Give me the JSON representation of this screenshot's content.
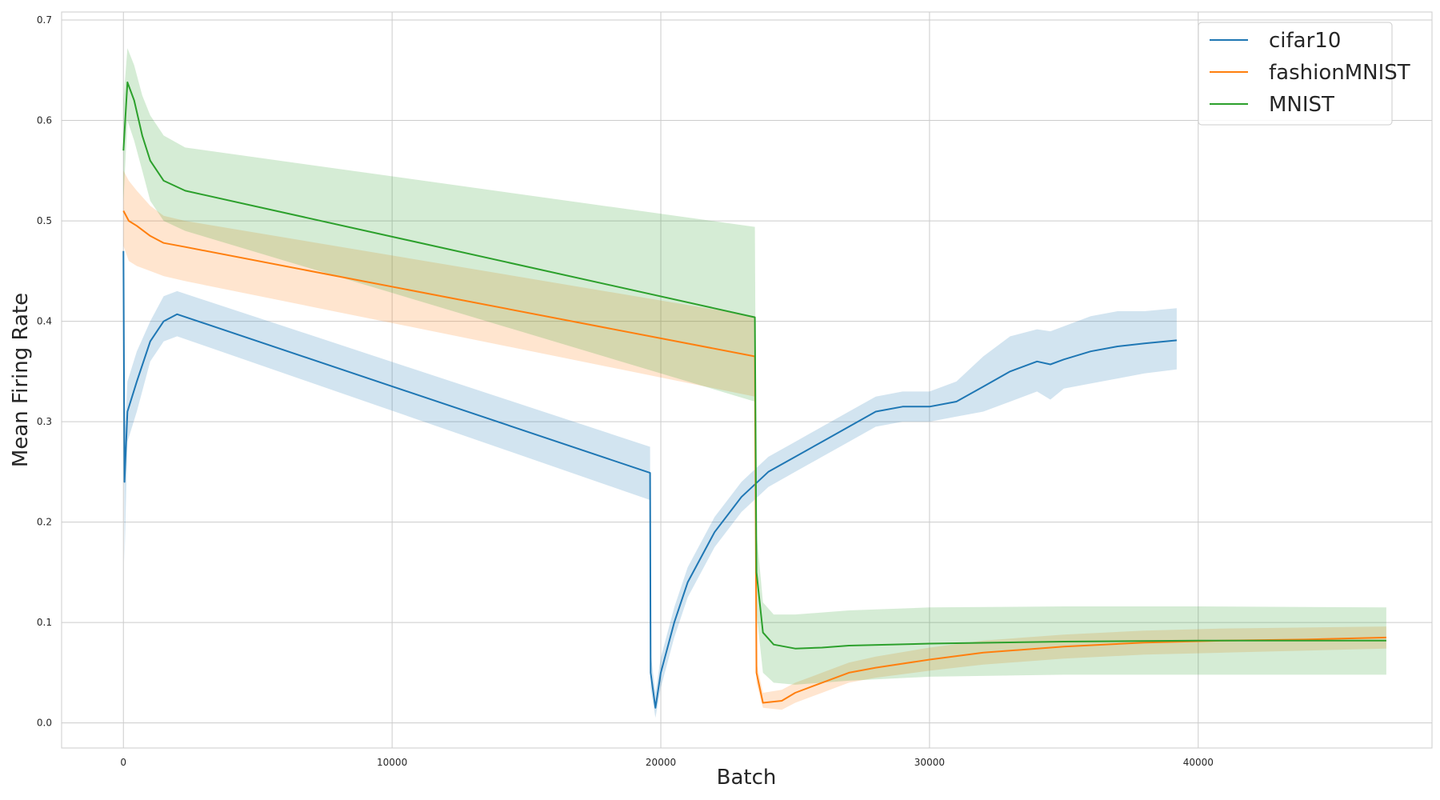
{
  "chart_data": {
    "type": "line",
    "title": "",
    "xlabel": "Batch",
    "ylabel": "Mean Firing Rate",
    "xlim": [
      -2300,
      48700
    ],
    "ylim": [
      -0.025,
      0.708
    ],
    "x_ticks": [
      0,
      10000,
      20000,
      30000,
      40000
    ],
    "y_ticks": [
      0.0,
      0.1,
      0.2,
      0.3,
      0.4,
      0.5,
      0.6,
      0.7
    ],
    "y_tick_labels": [
      "0.0",
      "0.1",
      "0.2",
      "0.3",
      "0.4",
      "0.5",
      "0.6",
      "0.7"
    ],
    "grid": true,
    "legend_position": "top-right",
    "series": [
      {
        "name": "cifar10",
        "color": "#1f77b4",
        "points": [
          [
            0,
            0.47
          ],
          [
            40,
            0.24
          ],
          [
            150,
            0.31
          ],
          [
            500,
            0.34
          ],
          [
            1000,
            0.38
          ],
          [
            1500,
            0.4
          ],
          [
            2000,
            0.407
          ],
          [
            19600,
            0.249
          ],
          [
            19620,
            0.05
          ],
          [
            19800,
            0.015
          ],
          [
            20000,
            0.05
          ],
          [
            20500,
            0.1
          ],
          [
            21000,
            0.14
          ],
          [
            22000,
            0.19
          ],
          [
            23000,
            0.225
          ],
          [
            24000,
            0.25
          ],
          [
            25000,
            0.265
          ],
          [
            26000,
            0.28
          ],
          [
            27000,
            0.295
          ],
          [
            28000,
            0.31
          ],
          [
            29000,
            0.315
          ],
          [
            30000,
            0.315
          ],
          [
            31000,
            0.32
          ],
          [
            32000,
            0.335
          ],
          [
            33000,
            0.35
          ],
          [
            34000,
            0.36
          ],
          [
            34500,
            0.357
          ],
          [
            35000,
            0.362
          ],
          [
            36000,
            0.37
          ],
          [
            37000,
            0.375
          ],
          [
            38000,
            0.378
          ],
          [
            39200,
            0.381
          ]
        ],
        "upper": [
          [
            0,
            0.47
          ],
          [
            40,
            0.28
          ],
          [
            150,
            0.34
          ],
          [
            500,
            0.37
          ],
          [
            1000,
            0.4
          ],
          [
            1500,
            0.425
          ],
          [
            2000,
            0.43
          ],
          [
            19600,
            0.275
          ],
          [
            19620,
            0.07
          ],
          [
            19800,
            0.03
          ],
          [
            20000,
            0.065
          ],
          [
            20500,
            0.115
          ],
          [
            21000,
            0.155
          ],
          [
            22000,
            0.205
          ],
          [
            23000,
            0.24
          ],
          [
            24000,
            0.265
          ],
          [
            25000,
            0.28
          ],
          [
            26000,
            0.295
          ],
          [
            27000,
            0.31
          ],
          [
            28000,
            0.325
          ],
          [
            29000,
            0.33
          ],
          [
            30000,
            0.33
          ],
          [
            31000,
            0.34
          ],
          [
            32000,
            0.365
          ],
          [
            33000,
            0.385
          ],
          [
            34000,
            0.392
          ],
          [
            34500,
            0.39
          ],
          [
            35000,
            0.395
          ],
          [
            36000,
            0.405
          ],
          [
            37000,
            0.41
          ],
          [
            38000,
            0.41
          ],
          [
            39200,
            0.413
          ]
        ],
        "lower": [
          [
            0,
            0.47
          ],
          [
            40,
            0.16
          ],
          [
            150,
            0.28
          ],
          [
            500,
            0.31
          ],
          [
            1000,
            0.36
          ],
          [
            1500,
            0.38
          ],
          [
            2000,
            0.385
          ],
          [
            19600,
            0.222
          ],
          [
            19620,
            0.035
          ],
          [
            19800,
            0.005
          ],
          [
            20000,
            0.035
          ],
          [
            20500,
            0.085
          ],
          [
            21000,
            0.125
          ],
          [
            22000,
            0.175
          ],
          [
            23000,
            0.21
          ],
          [
            24000,
            0.235
          ],
          [
            25000,
            0.25
          ],
          [
            26000,
            0.265
          ],
          [
            27000,
            0.28
          ],
          [
            28000,
            0.295
          ],
          [
            29000,
            0.3
          ],
          [
            30000,
            0.3
          ],
          [
            31000,
            0.305
          ],
          [
            32000,
            0.31
          ],
          [
            33000,
            0.32
          ],
          [
            34000,
            0.33
          ],
          [
            34500,
            0.322
          ],
          [
            35000,
            0.333
          ],
          [
            36000,
            0.338
          ],
          [
            37000,
            0.343
          ],
          [
            38000,
            0.348
          ],
          [
            39200,
            0.352
          ]
        ]
      },
      {
        "name": "fashionMNIST",
        "color": "#ff7f0e",
        "points": [
          [
            0,
            0.51
          ],
          [
            200,
            0.5
          ],
          [
            500,
            0.495
          ],
          [
            1000,
            0.485
          ],
          [
            1500,
            0.478
          ],
          [
            2300,
            0.474
          ],
          [
            23500,
            0.365
          ],
          [
            23560,
            0.05
          ],
          [
            23800,
            0.02
          ],
          [
            24500,
            0.022
          ],
          [
            25000,
            0.03
          ],
          [
            26000,
            0.04
          ],
          [
            27000,
            0.05
          ],
          [
            28000,
            0.055
          ],
          [
            30000,
            0.063
          ],
          [
            32000,
            0.07
          ],
          [
            35000,
            0.076
          ],
          [
            38000,
            0.08
          ],
          [
            41000,
            0.082
          ],
          [
            44000,
            0.083
          ],
          [
            47000,
            0.085
          ]
        ],
        "upper": [
          [
            0,
            0.55
          ],
          [
            200,
            0.54
          ],
          [
            500,
            0.53
          ],
          [
            1000,
            0.515
          ],
          [
            1500,
            0.505
          ],
          [
            2300,
            0.5
          ],
          [
            23500,
            0.405
          ],
          [
            23560,
            0.06
          ],
          [
            23800,
            0.03
          ],
          [
            24500,
            0.033
          ],
          [
            25000,
            0.04
          ],
          [
            26000,
            0.05
          ],
          [
            27000,
            0.06
          ],
          [
            28000,
            0.066
          ],
          [
            30000,
            0.075
          ],
          [
            32000,
            0.082
          ],
          [
            35000,
            0.088
          ],
          [
            38000,
            0.092
          ],
          [
            41000,
            0.094
          ],
          [
            44000,
            0.095
          ],
          [
            47000,
            0.096
          ]
        ],
        "lower": [
          [
            0,
            0.475
          ],
          [
            200,
            0.46
          ],
          [
            500,
            0.455
          ],
          [
            1000,
            0.45
          ],
          [
            1500,
            0.445
          ],
          [
            2300,
            0.44
          ],
          [
            23500,
            0.325
          ],
          [
            23560,
            0.04
          ],
          [
            23800,
            0.015
          ],
          [
            24500,
            0.013
          ],
          [
            25000,
            0.02
          ],
          [
            26000,
            0.03
          ],
          [
            27000,
            0.04
          ],
          [
            28000,
            0.045
          ],
          [
            30000,
            0.052
          ],
          [
            32000,
            0.058
          ],
          [
            35000,
            0.064
          ],
          [
            38000,
            0.068
          ],
          [
            41000,
            0.07
          ],
          [
            44000,
            0.072
          ],
          [
            47000,
            0.074
          ]
        ]
      },
      {
        "name": "MNIST",
        "color": "#2ca02c",
        "points": [
          [
            0,
            0.57
          ],
          [
            150,
            0.638
          ],
          [
            400,
            0.62
          ],
          [
            700,
            0.585
          ],
          [
            1000,
            0.56
          ],
          [
            1500,
            0.54
          ],
          [
            2300,
            0.53
          ],
          [
            23500,
            0.404
          ],
          [
            23560,
            0.15
          ],
          [
            23800,
            0.09
          ],
          [
            24200,
            0.078
          ],
          [
            25000,
            0.074
          ],
          [
            26000,
            0.075
          ],
          [
            27000,
            0.077
          ],
          [
            30000,
            0.079
          ],
          [
            35000,
            0.081
          ],
          [
            40000,
            0.082
          ],
          [
            47000,
            0.082
          ]
        ],
        "upper": [
          [
            0,
            0.62
          ],
          [
            150,
            0.672
          ],
          [
            400,
            0.655
          ],
          [
            700,
            0.625
          ],
          [
            1000,
            0.605
          ],
          [
            1500,
            0.585
          ],
          [
            2300,
            0.573
          ],
          [
            23500,
            0.494
          ],
          [
            23560,
            0.19
          ],
          [
            23800,
            0.12
          ],
          [
            24200,
            0.108
          ],
          [
            25000,
            0.108
          ],
          [
            26000,
            0.11
          ],
          [
            27000,
            0.112
          ],
          [
            30000,
            0.115
          ],
          [
            35000,
            0.116
          ],
          [
            40000,
            0.116
          ],
          [
            47000,
            0.115
          ]
        ],
        "lower": [
          [
            0,
            0.52
          ],
          [
            150,
            0.6
          ],
          [
            400,
            0.58
          ],
          [
            700,
            0.55
          ],
          [
            1000,
            0.52
          ],
          [
            1500,
            0.5
          ],
          [
            2300,
            0.49
          ],
          [
            23500,
            0.32
          ],
          [
            23560,
            0.11
          ],
          [
            23800,
            0.05
          ],
          [
            24200,
            0.04
          ],
          [
            25000,
            0.038
          ],
          [
            26000,
            0.04
          ],
          [
            27000,
            0.042
          ],
          [
            30000,
            0.046
          ],
          [
            35000,
            0.048
          ],
          [
            40000,
            0.048
          ],
          [
            47000,
            0.048
          ]
        ]
      }
    ]
  }
}
